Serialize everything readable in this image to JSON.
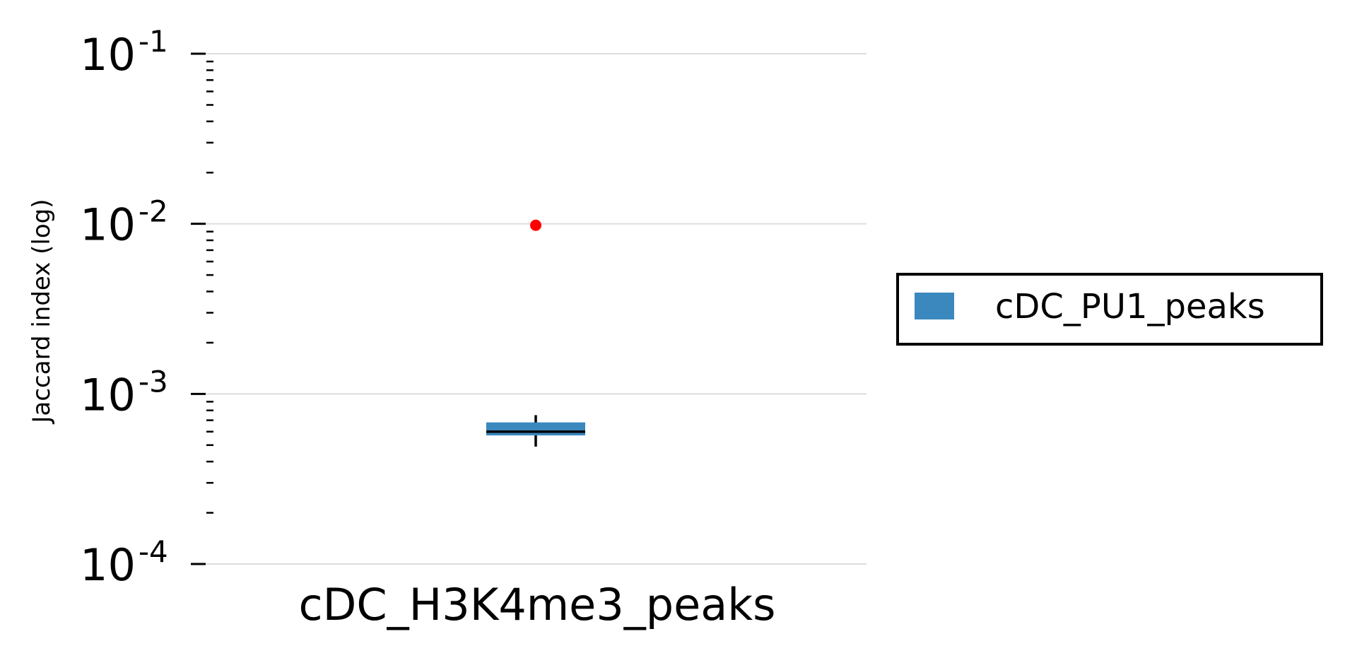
{
  "chart_data": {
    "type": "box",
    "title": "",
    "xlabel": "",
    "ylabel": "Jaccard index (log)",
    "y_scale": "log",
    "ylim": [
      0.0001,
      0.1
    ],
    "y_ticks": [
      {
        "value": 0.1,
        "base": "10",
        "exp": "-1"
      },
      {
        "value": 0.01,
        "base": "10",
        "exp": "-2"
      },
      {
        "value": 0.001,
        "base": "10",
        "exp": "-3"
      },
      {
        "value": 0.0001,
        "base": "10",
        "exp": "-4"
      }
    ],
    "grid": "horizontal",
    "legend_position": "right",
    "categories": [
      "cDC_H3K4me3_peaks"
    ],
    "series": [
      {
        "name": "cDC_PU1_peaks",
        "color": "#3a88be",
        "boxes": [
          {
            "category": "cDC_H3K4me3_peaks",
            "whisker_low": 0.00049,
            "q1": 0.00057,
            "median": 0.0006,
            "q3": 0.00068,
            "whisker_high": 0.00075,
            "outliers": [
              0.0098
            ]
          }
        ]
      }
    ],
    "outlier_color": "#ff0000"
  }
}
